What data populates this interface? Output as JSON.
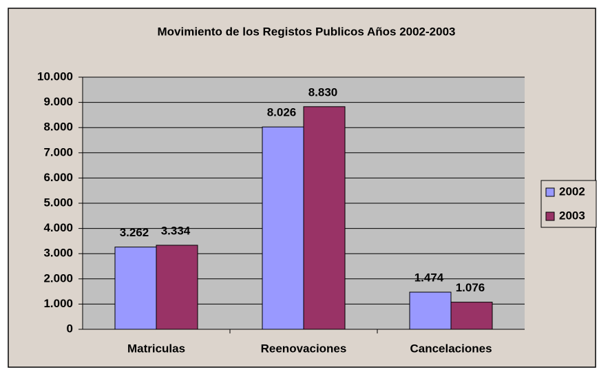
{
  "chart_data": {
    "type": "bar",
    "title": "Movimiento de los Registos Publicos Años 2002-2003",
    "categories": [
      "Matriculas",
      "Reenovaciones",
      "Cancelaciones"
    ],
    "series": [
      {
        "name": "2002",
        "color": "#9999ff",
        "values": [
          3262,
          8026,
          1474
        ],
        "value_labels": [
          "3.262",
          "8.026",
          "1.474"
        ]
      },
      {
        "name": "2003",
        "color": "#993366",
        "values": [
          3334,
          8830,
          1076
        ],
        "value_labels": [
          "3.334",
          "8.830",
          "1.076"
        ]
      }
    ],
    "ylim": [
      0,
      10000
    ],
    "yticks": [
      0,
      {
        "value": 1000,
        "label": "1.000"
      },
      {
        "value": 2000,
        "label": "2.000"
      },
      {
        "value": 3000,
        "label": "3.000"
      },
      {
        "value": 4000,
        "label": "4.000"
      },
      {
        "value": 5000,
        "label": "5.000"
      },
      {
        "value": 6000,
        "label": "6.000"
      },
      {
        "value": 7000,
        "label": "7.000"
      },
      {
        "value": 8000,
        "label": "8.000"
      },
      {
        "value": 9000,
        "label": "9.000"
      },
      {
        "value": 10000,
        "label": "10.000"
      }
    ],
    "grid": true,
    "legend": "right"
  }
}
